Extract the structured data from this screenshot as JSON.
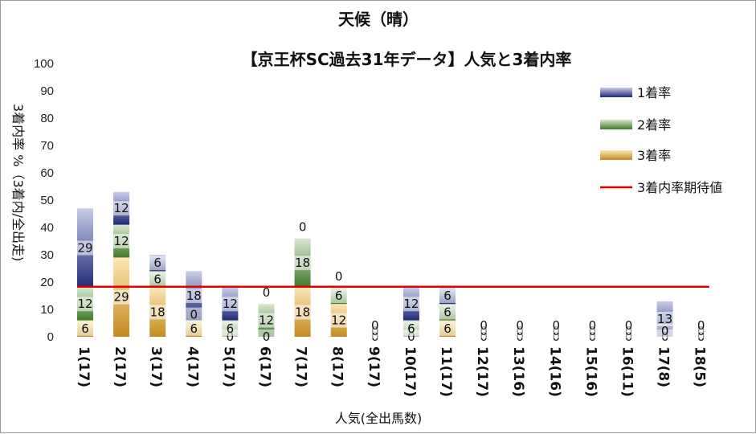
{
  "chart_data": {
    "type": "bar",
    "stacked": true,
    "title": "天候（晴）",
    "subtitle": "【京王杯SC過去31年データ】人気と3着内率",
    "xlabel": "人気(全出馬数)",
    "ylabel": "3着内率 %（3着内/全出走)",
    "ylim": [
      0,
      100
    ],
    "yticks": [
      0,
      10,
      20,
      30,
      40,
      50,
      60,
      70,
      80,
      90,
      100
    ],
    "grid": false,
    "legend_position": "right",
    "categories": [
      "1(17)",
      "2(17)",
      "3(17)",
      "4(17)",
      "5(17)",
      "6(17)",
      "7(17)",
      "8(17)",
      "9(17)",
      "10(17)",
      "11(17)",
      "12(17)",
      "13(16)",
      "14(16)",
      "15(16)",
      "16(11)",
      "17(8)",
      "18(5)"
    ],
    "series": [
      {
        "name": "3着率",
        "color": "#e2b14a",
        "values": [
          6,
          29,
          18,
          6,
          0,
          0,
          18,
          12,
          0,
          0,
          6,
          0,
          0,
          0,
          0,
          0,
          0,
          0
        ]
      },
      {
        "name": "2着率",
        "color": "#5a8f3e",
        "values": [
          12,
          12,
          6,
          0,
          6,
          12,
          18,
          6,
          0,
          6,
          6,
          0,
          0,
          0,
          0,
          0,
          0,
          0
        ]
      },
      {
        "name": "1着率",
        "color": "#2e3d8c",
        "values": [
          29,
          12,
          6,
          18,
          12,
          0,
          0,
          0,
          0,
          12,
          6,
          0,
          0,
          0,
          0,
          0,
          13,
          0
        ]
      }
    ],
    "reference_line": {
      "name": "3着内率期待値",
      "color": "#e00000",
      "value": 18.3
    }
  }
}
